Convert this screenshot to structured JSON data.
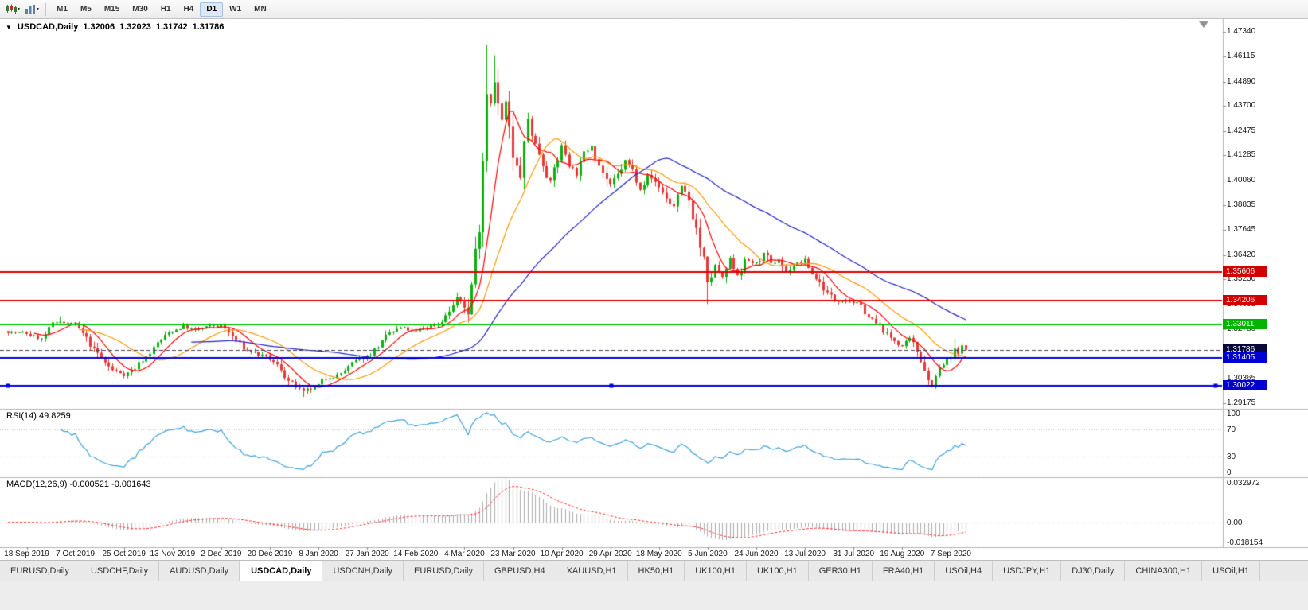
{
  "toolbar": {
    "timeframes": [
      "M1",
      "M5",
      "M15",
      "M30",
      "H1",
      "H4",
      "D1",
      "W1",
      "MN"
    ],
    "active_timeframe": "D1"
  },
  "chart_header": {
    "symbol": "USDCAD,Daily",
    "open": "1.32006",
    "high": "1.32023",
    "low": "1.31742",
    "close": "1.31786"
  },
  "price_scale": {
    "ticks": [
      "1.47340",
      "1.46115",
      "1.44890",
      "1.43700",
      "1.42475",
      "1.41285",
      "1.40060",
      "1.38835",
      "1.37645",
      "1.36420",
      "1.35230",
      "1.34005",
      "1.32780",
      "1.31590",
      "1.30365",
      "1.29175"
    ]
  },
  "rsi_panel": {
    "name": "RSI(14)",
    "value": "49.8259",
    "scale": [
      "100",
      "70",
      "30",
      "0"
    ]
  },
  "macd_panel": {
    "name": "MACD(12,26,9)",
    "value": "-0.000521 -0.001643",
    "scale": [
      "0.032972",
      "0.00",
      "-0.018154"
    ]
  },
  "x_axis": {
    "labels": [
      "18 Sep 2019",
      "7 Oct 2019",
      "25 Oct 2019",
      "13 Nov 2019",
      "2 Dec 2019",
      "20 Dec 2019",
      "8 Jan 2020",
      "27 Jan 2020",
      "14 Feb 2020",
      "4 Mar 2020",
      "23 Mar 2020",
      "10 Apr 2020",
      "29 Apr 2020",
      "18 May 2020",
      "5 Jun 2020",
      "24 Jun 2020",
      "13 Jul 2020",
      "31 Jul 2020",
      "19 Aug 2020",
      "7 Sep 2020"
    ]
  },
  "tabs": {
    "active_index": 3,
    "items": [
      "EURUSD,Daily",
      "USDCHF,Daily",
      "AUDUSD,Daily",
      "USDCAD,Daily",
      "USDCNH,Daily",
      "EURUSD,Daily",
      "GBPUSD,H4",
      "XAUUSD,H1",
      "HK50,H1",
      "UK100,H1",
      "UK100,H1",
      "GER30,H1",
      "FRA40,H1",
      "USOil,H4",
      "USDJPY,H1",
      "DJ30,Daily",
      "CHINA300,H1",
      "USOil,H1"
    ],
    "active_label": "USDCAD,Daily"
  },
  "chart_data": {
    "type": "candlestick",
    "symbol": "USDCAD",
    "timeframe": "Daily",
    "current_price": 1.31786,
    "last_ohlc": {
      "open": 1.32006,
      "high": 1.32023,
      "low": 1.31742,
      "close": 1.31786
    },
    "y_range": [
      1.289,
      1.4795
    ],
    "y_ticks": [
      1.4734,
      1.46115,
      1.4489,
      1.437,
      1.42475,
      1.41285,
      1.4006,
      1.38835,
      1.37645,
      1.3642,
      1.3523,
      1.34005,
      1.3278,
      1.3159,
      1.30365,
      1.29175
    ],
    "n_candles": 257,
    "label_start": 5,
    "label_step": 13,
    "seed": 7,
    "up_color": "#0faf0f",
    "down_color": "#e53935",
    "rsi_color": "#3fa3dc",
    "macd_hist_color": "#ababab",
    "macd_signal_color": "#ff2b2b",
    "ma": [
      {
        "period": 8,
        "color": "#ff0000"
      },
      {
        "period": 20,
        "color": "#ff9800"
      },
      {
        "period": 50,
        "color": "#2424c8"
      }
    ],
    "levels": [
      {
        "label": "1.35606",
        "color": "#e00000",
        "box": "#d40000",
        "width": 2,
        "style": "solid"
      },
      {
        "label": "1.34206",
        "color": "#e00000",
        "box": "#d40000",
        "width": 2,
        "style": "solid"
      },
      {
        "label": "1.33011",
        "color": "#00ca00",
        "box": "#00b400",
        "width": 2,
        "style": "solid"
      },
      {
        "label": "1.31786",
        "color": "#44445c",
        "box": "#08083a",
        "width": 1,
        "style": "dash",
        "bid": true
      },
      {
        "label": "1.31405",
        "color": "#0000dc",
        "box": "#0000d2",
        "width": 2,
        "style": "solid"
      },
      {
        "label": "1.30022",
        "color": "#0000dc",
        "box": "#0000d2",
        "width": 2,
        "style": "solid",
        "selected": true
      }
    ],
    "price_anchors": [
      [
        0,
        1.327
      ],
      [
        5,
        1.3255
      ],
      [
        9,
        1.323
      ],
      [
        12,
        1.329
      ],
      [
        14,
        1.332
      ],
      [
        18,
        1.3295
      ],
      [
        21,
        1.322
      ],
      [
        25,
        1.313
      ],
      [
        28,
        1.3075
      ],
      [
        31,
        1.306
      ],
      [
        34,
        1.309
      ],
      [
        37,
        1.315
      ],
      [
        40,
        1.321
      ],
      [
        44,
        1.327
      ],
      [
        47,
        1.33
      ],
      [
        50,
        1.327
      ],
      [
        53,
        1.3285
      ],
      [
        57,
        1.3295
      ],
      [
        60,
        1.324
      ],
      [
        63,
        1.318
      ],
      [
        66,
        1.3165
      ],
      [
        70,
        1.3125
      ],
      [
        73,
        1.308
      ],
      [
        76,
        1.301
      ],
      [
        79,
        1.296
      ],
      [
        83,
        1.2995
      ],
      [
        86,
        1.305
      ],
      [
        89,
        1.3065
      ],
      [
        92,
        1.3105
      ],
      [
        96,
        1.3145
      ],
      [
        99,
        1.32
      ],
      [
        102,
        1.325
      ],
      [
        105,
        1.328
      ],
      [
        109,
        1.326
      ],
      [
        112,
        1.329
      ],
      [
        115,
        1.331
      ],
      [
        118,
        1.337
      ],
      [
        120,
        1.3425
      ],
      [
        122,
        1.3395
      ],
      [
        123,
        1.3355
      ],
      [
        125,
        1.365
      ],
      [
        126,
        1.38
      ],
      [
        127,
        1.415
      ],
      [
        128,
        1.448
      ],
      [
        129,
        1.442
      ],
      [
        130,
        1.452
      ],
      [
        131,
        1.438
      ],
      [
        132,
        1.43
      ],
      [
        133,
        1.438
      ],
      [
        134,
        1.425
      ],
      [
        135,
        1.408
      ],
      [
        137,
        1.402
      ],
      [
        139,
        1.428
      ],
      [
        141,
        1.418
      ],
      [
        143,
        1.41
      ],
      [
        145,
        1.402
      ],
      [
        147,
        1.412
      ],
      [
        148,
        1.418
      ],
      [
        150,
        1.41
      ],
      [
        152,
        1.404
      ],
      [
        154,
        1.412
      ],
      [
        156,
        1.418
      ],
      [
        158,
        1.41
      ],
      [
        161,
        1.398
      ],
      [
        163,
        1.402
      ],
      [
        165,
        1.41
      ],
      [
        167,
        1.405
      ],
      [
        169,
        1.398
      ],
      [
        171,
        1.404
      ],
      [
        174,
        1.398
      ],
      [
        176,
        1.392
      ],
      [
        178,
        1.388
      ],
      [
        180,
        1.396
      ],
      [
        182,
        1.39
      ],
      [
        184,
        1.378
      ],
      [
        186,
        1.36
      ],
      [
        187,
        1.347
      ],
      [
        189,
        1.358
      ],
      [
        191,
        1.352
      ],
      [
        193,
        1.361
      ],
      [
        195,
        1.355
      ],
      [
        197,
        1.362
      ],
      [
        200,
        1.36
      ],
      [
        202,
        1.365
      ],
      [
        204,
        1.358
      ],
      [
        206,
        1.362
      ],
      [
        208,
        1.356
      ],
      [
        210,
        1.36
      ],
      [
        213,
        1.361
      ],
      [
        215,
        1.355
      ],
      [
        217,
        1.351
      ],
      [
        219,
        1.346
      ],
      [
        221,
        1.3415
      ],
      [
        223,
        1.343
      ],
      [
        226,
        1.342
      ],
      [
        228,
        1.338
      ],
      [
        230,
        1.334
      ],
      [
        232,
        1.33
      ],
      [
        234,
        1.327
      ],
      [
        236,
        1.323
      ],
      [
        239,
        1.32
      ],
      [
        241,
        1.322
      ],
      [
        243,
        1.316
      ],
      [
        245,
        1.31
      ],
      [
        246,
        1.304
      ],
      [
        247,
        1.301
      ],
      [
        249,
        1.308
      ],
      [
        251,
        1.312
      ],
      [
        252,
        1.313
      ],
      [
        253,
        1.317
      ],
      [
        254,
        1.315
      ],
      [
        255,
        1.3185
      ],
      [
        256,
        1.31786
      ]
    ],
    "wick_overrides": [
      [
        14,
        "h",
        1.3342
      ],
      [
        79,
        "l",
        1.2948
      ],
      [
        120,
        "h",
        1.3458
      ],
      [
        123,
        "l",
        1.3312
      ],
      [
        128,
        "h",
        1.467
      ],
      [
        130,
        "h",
        1.4618
      ],
      [
        187,
        "l",
        1.3402
      ],
      [
        247,
        "l",
        1.2994
      ],
      [
        253,
        "h",
        1.3232
      ]
    ],
    "rsi": {
      "period": 14,
      "current": 49.8259,
      "levels": [
        70,
        30
      ]
    },
    "macd": {
      "fast": 12,
      "slow": 26,
      "signal": 9,
      "current_macd": -0.000521,
      "current_signal": -0.001643,
      "scale_max": 0.032972,
      "scale_min": -0.018154
    }
  }
}
